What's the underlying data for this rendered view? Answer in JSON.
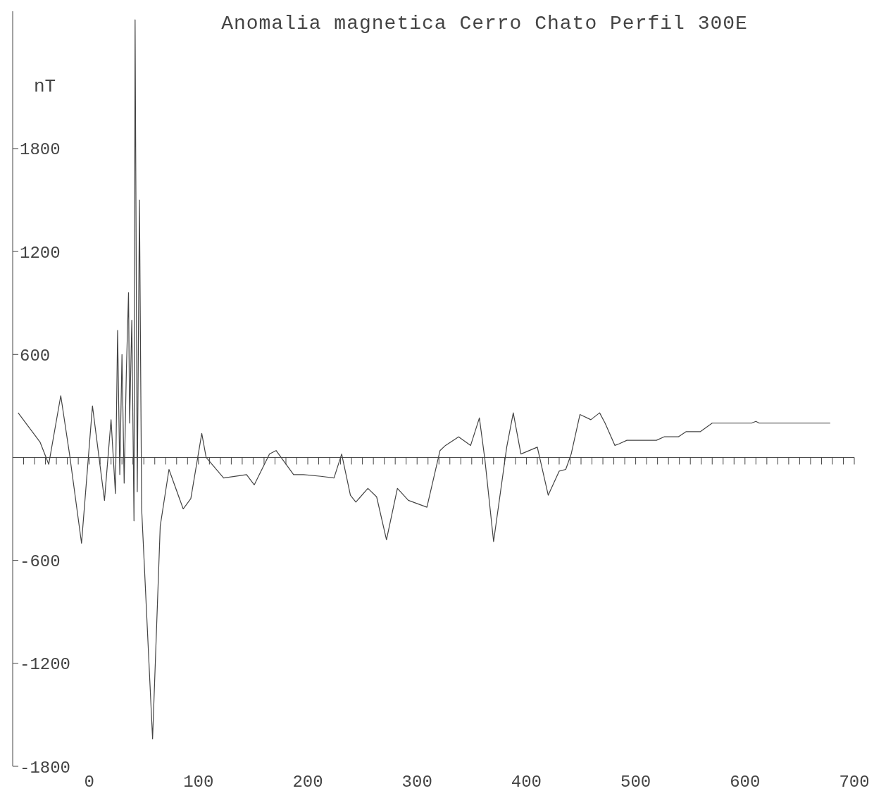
{
  "chart_data": {
    "type": "line",
    "title": "Anomalia magnetica Cerro Chato Perfil 300E",
    "ylabel": "nT",
    "xlim": [
      -70,
      700
    ],
    "xticks": [
      {
        "value": -60,
        "label": null
      },
      {
        "value": -50,
        "label": null
      },
      {
        "value": -40,
        "label": null
      },
      {
        "value": -30,
        "label": null
      },
      {
        "value": -20,
        "label": null
      },
      {
        "value": -10,
        "label": null
      },
      0,
      {
        "value": 10,
        "label": null
      },
      {
        "value": 20,
        "label": null
      },
      {
        "value": 30,
        "label": null
      },
      {
        "value": 40,
        "label": null
      },
      {
        "value": 50,
        "label": null
      },
      {
        "value": 60,
        "label": null
      },
      {
        "value": 70,
        "label": null
      },
      {
        "value": 80,
        "label": null
      },
      {
        "value": 90,
        "label": null
      },
      100,
      {
        "value": 110,
        "label": null
      },
      {
        "value": 120,
        "label": null
      },
      {
        "value": 130,
        "label": null
      },
      {
        "value": 140,
        "label": null
      },
      {
        "value": 150,
        "label": null
      },
      {
        "value": 160,
        "label": null
      },
      {
        "value": 170,
        "label": null
      },
      {
        "value": 180,
        "label": null
      },
      {
        "value": 190,
        "label": null
      },
      200,
      {
        "value": 210,
        "label": null
      },
      {
        "value": 220,
        "label": null
      },
      {
        "value": 230,
        "label": null
      },
      {
        "value": 240,
        "label": null
      },
      {
        "value": 250,
        "label": null
      },
      {
        "value": 260,
        "label": null
      },
      {
        "value": 270,
        "label": null
      },
      {
        "value": 280,
        "label": null
      },
      {
        "value": 290,
        "label": null
      },
      300,
      {
        "value": 310,
        "label": null
      },
      {
        "value": 320,
        "label": null
      },
      {
        "value": 330,
        "label": null
      },
      {
        "value": 340,
        "label": null
      },
      {
        "value": 350,
        "label": null
      },
      {
        "value": 360,
        "label": null
      },
      {
        "value": 370,
        "label": null
      },
      {
        "value": 380,
        "label": null
      },
      {
        "value": 390,
        "label": null
      },
      400,
      {
        "value": 410,
        "label": null
      },
      {
        "value": 420,
        "label": null
      },
      {
        "value": 430,
        "label": null
      },
      {
        "value": 440,
        "label": null
      },
      {
        "value": 450,
        "label": null
      },
      {
        "value": 460,
        "label": null
      },
      {
        "value": 470,
        "label": null
      },
      {
        "value": 480,
        "label": null
      },
      {
        "value": 490,
        "label": null
      },
      500,
      {
        "value": 510,
        "label": null
      },
      {
        "value": 520,
        "label": null
      },
      {
        "value": 530,
        "label": null
      },
      {
        "value": 540,
        "label": null
      },
      {
        "value": 550,
        "label": null
      },
      {
        "value": 560,
        "label": null
      },
      {
        "value": 570,
        "label": null
      },
      {
        "value": 580,
        "label": null
      },
      {
        "value": 590,
        "label": null
      },
      600,
      {
        "value": 610,
        "label": null
      },
      {
        "value": 620,
        "label": null
      },
      {
        "value": 630,
        "label": null
      },
      {
        "value": 640,
        "label": null
      },
      {
        "value": 650,
        "label": null
      },
      {
        "value": 660,
        "label": null
      },
      {
        "value": 670,
        "label": null
      },
      {
        "value": 680,
        "label": null
      },
      {
        "value": 690,
        "label": null
      },
      700
    ],
    "ylim": [
      -1800,
      2600
    ],
    "yticks": [
      -1800,
      -1200,
      -600,
      600,
      1200,
      1800
    ],
    "series": [
      {
        "color": "#444444",
        "x": [
          -65,
          -45,
          -37,
          -26,
          -18,
          -7,
          3,
          14,
          20,
          24,
          26,
          28,
          30,
          32,
          34,
          36,
          37,
          39,
          41,
          42,
          44,
          46,
          48,
          58,
          65,
          73,
          86,
          93,
          103,
          107,
          123,
          144,
          151,
          165,
          171,
          187,
          196,
          212,
          224,
          231,
          239,
          244,
          255,
          263,
          272,
          282,
          292,
          309,
          321,
          326,
          338,
          349,
          357,
          362,
          370,
          382,
          388,
          395,
          410,
          420,
          430,
          436,
          441,
          449,
          459,
          467,
          472,
          481,
          485,
          492,
          509,
          511,
          519,
          526,
          539,
          546,
          559,
          570,
          606,
          610,
          613,
          678
        ],
        "values": [
          260,
          90,
          -40,
          360,
          20,
          -500,
          300,
          -250,
          220,
          -210,
          740,
          -100,
          600,
          -150,
          500,
          960,
          200,
          800,
          -370,
          2550,
          -200,
          1500,
          -300,
          -1640,
          -400,
          -70,
          -300,
          -240,
          140,
          0,
          -120,
          -100,
          -160,
          20,
          40,
          -100,
          -100,
          -110,
          -120,
          20,
          -220,
          -260,
          -180,
          -230,
          -480,
          -180,
          -250,
          -290,
          40,
          70,
          120,
          70,
          230,
          -10,
          -490,
          60,
          260,
          20,
          60,
          -220,
          -80,
          -70,
          20,
          250,
          220,
          260,
          200,
          70,
          80,
          100,
          100,
          100,
          100,
          120,
          120,
          150,
          150,
          200,
          200,
          210,
          200,
          200
        ]
      }
    ]
  }
}
